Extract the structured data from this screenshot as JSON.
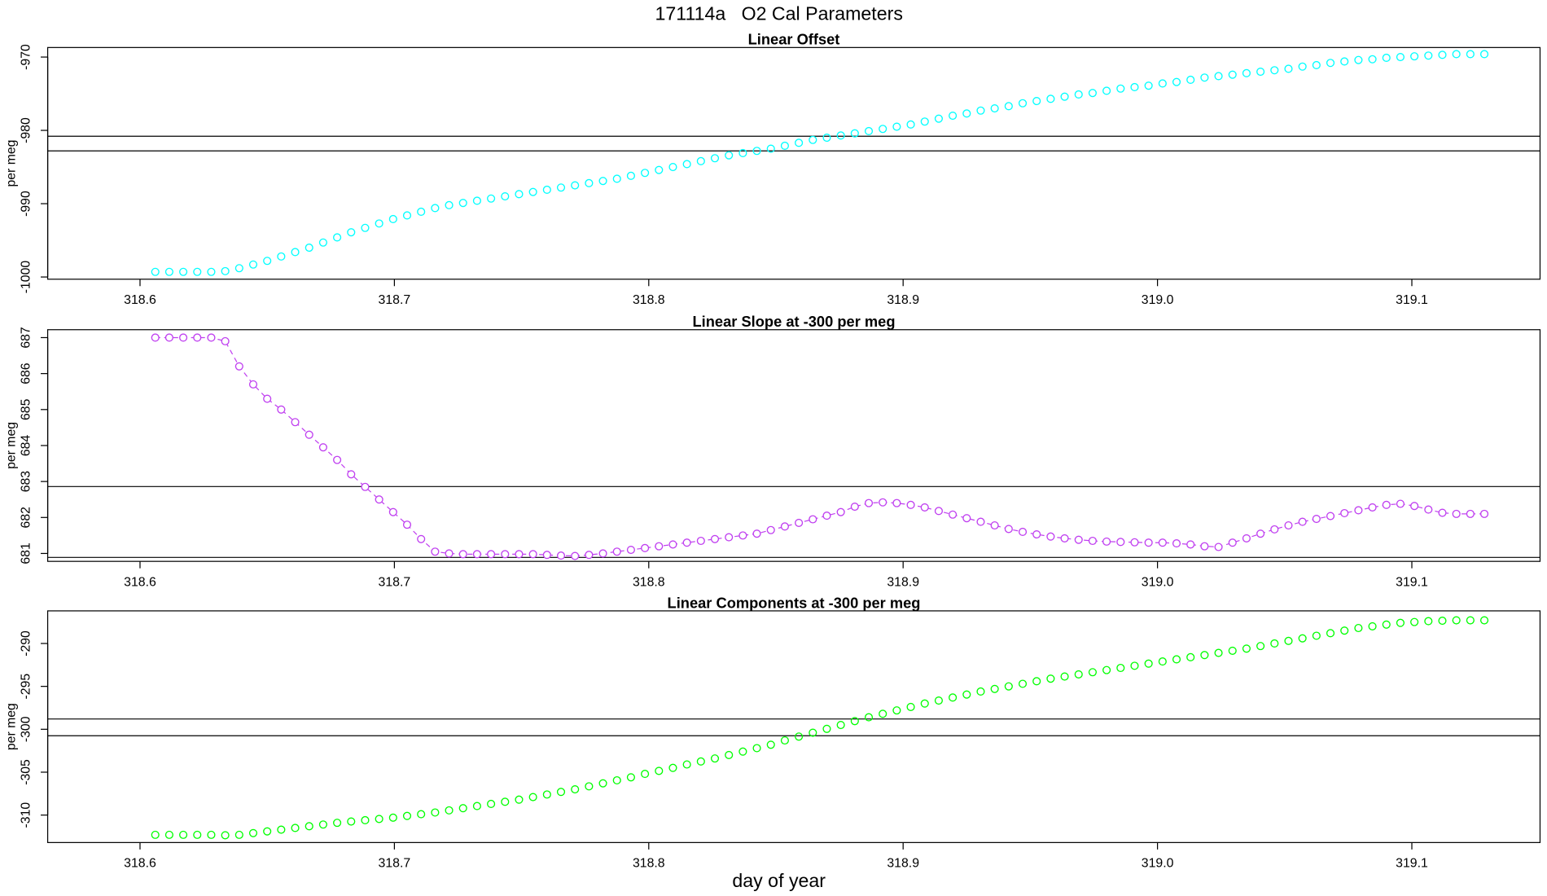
{
  "title": "171114a   O2 Cal Parameters",
  "x_label": "day of year",
  "chart_data": [
    {
      "type": "scatter",
      "title": "Linear Offset",
      "y_label": "per meg",
      "color": "#00ffff",
      "connect": false,
      "x": [
        318.606,
        318.6115,
        318.617,
        318.6225,
        318.628,
        318.6335,
        318.639,
        318.6445,
        318.65,
        318.6555,
        318.661,
        318.6665,
        318.672,
        318.6775,
        318.683,
        318.6885,
        318.694,
        318.6995,
        318.705,
        318.7105,
        318.716,
        318.7215,
        318.727,
        318.7325,
        318.738,
        318.7435,
        318.749,
        318.7545,
        318.76,
        318.7655,
        318.771,
        318.7765,
        318.782,
        318.7875,
        318.793,
        318.7985,
        318.804,
        318.8095,
        318.815,
        318.8205,
        318.826,
        318.8315,
        318.837,
        318.8425,
        318.848,
        318.8535,
        318.859,
        318.8645,
        318.87,
        318.8755,
        318.881,
        318.8865,
        318.892,
        318.8975,
        318.903,
        318.9085,
        318.914,
        318.9195,
        318.925,
        318.9305,
        318.936,
        318.9415,
        318.947,
        318.9525,
        318.958,
        318.9635,
        318.969,
        318.9745,
        318.98,
        318.9855,
        318.991,
        318.9965,
        319.002,
        319.0075,
        319.013,
        319.0185,
        319.024,
        319.0295,
        319.035,
        319.0405,
        319.046,
        319.0515,
        319.057,
        319.0625,
        319.068,
        319.0735,
        319.079,
        319.0845,
        319.09,
        319.0955,
        319.101,
        319.1065,
        319.112,
        319.1175,
        319.123,
        319.1285
      ],
      "values": [
        -999.3,
        -999.3,
        -999.3,
        -999.3,
        -999.3,
        -999.2,
        -998.8,
        -998.3,
        -997.8,
        -997.2,
        -996.6,
        -996.0,
        -995.3,
        -994.6,
        -993.9,
        -993.3,
        -992.7,
        -992.1,
        -991.6,
        -991.1,
        -990.6,
        -990.2,
        -989.9,
        -989.6,
        -989.3,
        -989.0,
        -988.7,
        -988.4,
        -988.1,
        -987.8,
        -987.5,
        -987.2,
        -986.9,
        -986.6,
        -986.2,
        -985.8,
        -985.4,
        -985.0,
        -984.6,
        -984.2,
        -983.8,
        -983.4,
        -983.1,
        -982.8,
        -982.5,
        -982.1,
        -981.7,
        -981.3,
        -981.0,
        -980.7,
        -980.4,
        -980.1,
        -979.8,
        -979.5,
        -979.2,
        -978.8,
        -978.4,
        -978.0,
        -977.7,
        -977.3,
        -977.0,
        -976.7,
        -976.3,
        -976.0,
        -975.7,
        -975.4,
        -975.1,
        -974.9,
        -974.6,
        -974.3,
        -974.1,
        -973.9,
        -973.6,
        -973.4,
        -973.1,
        -972.8,
        -972.6,
        -972.4,
        -972.2,
        -972.0,
        -971.8,
        -971.6,
        -971.3,
        -971.1,
        -970.8,
        -970.6,
        -970.4,
        -970.3,
        -970.1,
        -970.0,
        -969.9,
        -969.8,
        -969.7,
        -969.6,
        -969.6,
        -969.6
      ],
      "hlines": [
        -980.8,
        -982.8
      ],
      "xlim": [
        318.5637,
        319.1504
      ],
      "xticks": [
        318.6,
        318.7,
        318.8,
        318.9,
        {
          "value": 319,
          "label": "319.0"
        },
        319.1
      ],
      "ylim": [
        -1000.3,
        -968.7
      ],
      "yticks": [
        -1000,
        -990,
        -980,
        -970
      ]
    },
    {
      "type": "scatter",
      "title": "Linear Slope at -300 per meg",
      "y_label": "per meg",
      "color": "#c040f0",
      "connect": true,
      "x": [
        318.606,
        318.6115,
        318.617,
        318.6225,
        318.628,
        318.6335,
        318.639,
        318.6445,
        318.65,
        318.6555,
        318.661,
        318.6665,
        318.672,
        318.6775,
        318.683,
        318.6885,
        318.694,
        318.6995,
        318.705,
        318.7105,
        318.716,
        318.7215,
        318.727,
        318.7325,
        318.738,
        318.7435,
        318.749,
        318.7545,
        318.76,
        318.7655,
        318.771,
        318.7765,
        318.782,
        318.7875,
        318.793,
        318.7985,
        318.804,
        318.8095,
        318.815,
        318.8205,
        318.826,
        318.8315,
        318.837,
        318.8425,
        318.848,
        318.8535,
        318.859,
        318.8645,
        318.87,
        318.8755,
        318.881,
        318.8865,
        318.892,
        318.8975,
        318.903,
        318.9085,
        318.914,
        318.9195,
        318.925,
        318.9305,
        318.936,
        318.9415,
        318.947,
        318.9525,
        318.958,
        318.9635,
        318.969,
        318.9745,
        318.98,
        318.9855,
        318.991,
        318.9965,
        319.002,
        319.0075,
        319.013,
        319.0185,
        319.024,
        319.0295,
        319.035,
        319.0405,
        319.046,
        319.0515,
        319.057,
        319.0625,
        319.068,
        319.0735,
        319.079,
        319.0845,
        319.09,
        319.0955,
        319.101,
        319.1065,
        319.112,
        319.1175,
        319.123,
        319.1285
      ],
      "values": [
        687.0,
        687.0,
        687.0,
        687.0,
        687.0,
        686.9,
        686.2,
        685.7,
        685.3,
        685.0,
        684.65,
        684.3,
        683.95,
        683.6,
        683.2,
        682.85,
        682.5,
        682.15,
        681.8,
        681.4,
        681.05,
        681.0,
        680.98,
        680.98,
        680.98,
        680.98,
        680.98,
        680.98,
        680.96,
        680.94,
        680.93,
        680.96,
        681.0,
        681.05,
        681.1,
        681.15,
        681.2,
        681.25,
        681.3,
        681.35,
        681.4,
        681.45,
        681.5,
        681.55,
        681.65,
        681.75,
        681.85,
        681.95,
        682.05,
        682.15,
        682.3,
        682.4,
        682.42,
        682.4,
        682.35,
        682.28,
        682.18,
        682.08,
        681.98,
        681.88,
        681.78,
        681.68,
        681.6,
        681.53,
        681.47,
        681.42,
        681.38,
        681.35,
        681.33,
        681.32,
        681.31,
        681.3,
        681.3,
        681.28,
        681.25,
        681.2,
        681.18,
        681.3,
        681.42,
        681.55,
        681.67,
        681.78,
        681.88,
        681.96,
        682.04,
        682.12,
        682.2,
        682.28,
        682.35,
        682.38,
        682.32,
        682.22,
        682.13,
        682.1,
        682.1,
        682.1
      ],
      "hlines": [
        682.86,
        680.89
      ],
      "xlim": [
        318.5637,
        319.1504
      ],
      "xticks": [
        318.6,
        318.7,
        318.8,
        318.9,
        {
          "value": 319,
          "label": "319.0"
        },
        319.1
      ],
      "ylim": [
        680.78,
        687.22
      ],
      "yticks": [
        681,
        682,
        683,
        684,
        685,
        686,
        687
      ]
    },
    {
      "type": "scatter",
      "title": "Linear Components at -300 per meg",
      "y_label": "per meg",
      "color": "#00ff00",
      "connect": false,
      "x": [
        318.606,
        318.6115,
        318.617,
        318.6225,
        318.628,
        318.6335,
        318.639,
        318.6445,
        318.65,
        318.6555,
        318.661,
        318.6665,
        318.672,
        318.6775,
        318.683,
        318.6885,
        318.694,
        318.6995,
        318.705,
        318.7105,
        318.716,
        318.7215,
        318.727,
        318.7325,
        318.738,
        318.7435,
        318.749,
        318.7545,
        318.76,
        318.7655,
        318.771,
        318.7765,
        318.782,
        318.7875,
        318.793,
        318.7985,
        318.804,
        318.8095,
        318.815,
        318.8205,
        318.826,
        318.8315,
        318.837,
        318.8425,
        318.848,
        318.8535,
        318.859,
        318.8645,
        318.87,
        318.8755,
        318.881,
        318.8865,
        318.892,
        318.8975,
        318.903,
        318.9085,
        318.914,
        318.9195,
        318.925,
        318.9305,
        318.936,
        318.9415,
        318.947,
        318.9525,
        318.958,
        318.9635,
        318.969,
        318.9745,
        318.98,
        318.9855,
        318.991,
        318.9965,
        319.002,
        319.0075,
        319.013,
        319.0185,
        319.024,
        319.0295,
        319.035,
        319.0405,
        319.046,
        319.0515,
        319.057,
        319.0625,
        319.068,
        319.0735,
        319.079,
        319.0845,
        319.09,
        319.0955,
        319.101,
        319.1065,
        319.112,
        319.1175,
        319.123,
        319.1285
      ],
      "values": [
        -312.3,
        -312.3,
        -312.3,
        -312.3,
        -312.3,
        -312.35,
        -312.3,
        -312.1,
        -311.9,
        -311.7,
        -311.5,
        -311.3,
        -311.1,
        -310.9,
        -310.75,
        -310.6,
        -310.45,
        -310.3,
        -310.1,
        -309.9,
        -309.7,
        -309.45,
        -309.2,
        -308.95,
        -308.7,
        -308.45,
        -308.2,
        -307.9,
        -307.6,
        -307.3,
        -307.0,
        -306.65,
        -306.3,
        -305.95,
        -305.6,
        -305.2,
        -304.85,
        -304.5,
        -304.1,
        -303.75,
        -303.4,
        -303.0,
        -302.6,
        -302.2,
        -301.8,
        -301.3,
        -300.85,
        -300.4,
        -299.95,
        -299.5,
        -299.05,
        -298.6,
        -298.2,
        -297.8,
        -297.4,
        -297.0,
        -296.65,
        -296.3,
        -295.95,
        -295.6,
        -295.3,
        -295.0,
        -294.7,
        -294.4,
        -294.1,
        -293.85,
        -293.6,
        -293.35,
        -293.1,
        -292.85,
        -292.6,
        -292.35,
        -292.1,
        -291.85,
        -291.6,
        -291.35,
        -291.1,
        -290.85,
        -290.6,
        -290.3,
        -290.0,
        -289.7,
        -289.4,
        -289.1,
        -288.8,
        -288.5,
        -288.2,
        -288.0,
        -287.8,
        -287.6,
        -287.5,
        -287.4,
        -287.35,
        -287.3,
        -287.3,
        -287.3
      ],
      "hlines": [
        -298.8,
        -300.75
      ],
      "xlim": [
        318.5637,
        319.1504
      ],
      "xticks": [
        318.6,
        318.7,
        318.8,
        318.9,
        {
          "value": 319,
          "label": "319.0"
        },
        319.1
      ],
      "ylim": [
        -313.2,
        -286.2
      ],
      "yticks": [
        -310,
        -305,
        -300,
        -295,
        -290
      ]
    }
  ]
}
